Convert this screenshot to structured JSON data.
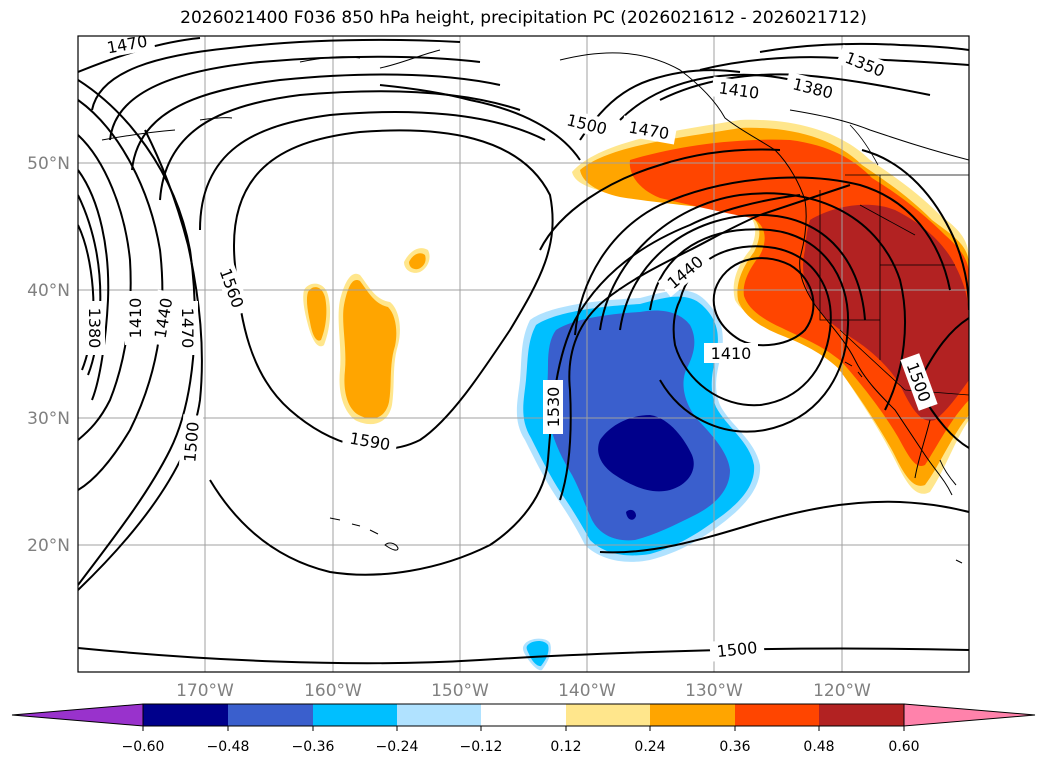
{
  "title": "2026021400 F036 850 hPa height, precipitation PC (2026021612 - 2026021712)",
  "map": {
    "lat_labels": [
      "50°N",
      "40°N",
      "30°N",
      "20°N"
    ],
    "lon_labels": [
      "170°W",
      "160°W",
      "150°W",
      "140°W",
      "130°W",
      "120°W"
    ],
    "contour_labels": [
      "1470",
      "1350",
      "1380",
      "1410",
      "1500",
      "1470",
      "1560",
      "1440",
      "1380",
      "1410",
      "1440",
      "1470",
      "1410",
      "1530",
      "1590",
      "1500",
      "1500",
      "1500"
    ],
    "colorbar_ticks": [
      "−0.60",
      "−0.48",
      "−0.36",
      "−0.24",
      "−0.12",
      "0.12",
      "0.24",
      "0.36",
      "0.48",
      "0.60"
    ],
    "colorbar_colors": [
      "#9932cc",
      "#00008b",
      "#3a5fcd",
      "#00bfff",
      "#b0e2ff",
      "#ffffff",
      "#ffe68c",
      "#ffa500",
      "#ff4500",
      "#b22222",
      "#ff82ab"
    ]
  }
}
